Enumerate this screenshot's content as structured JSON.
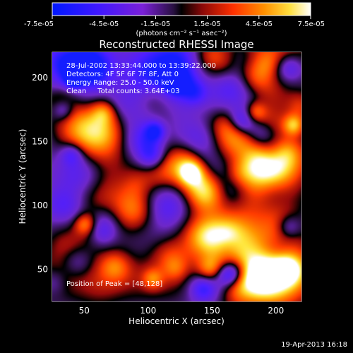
{
  "chart_data": {
    "type": "heatmap",
    "title": "Reconstructed RHESSI Image",
    "xlabel": "Heliocentric X (arcsec)",
    "ylabel": "Heliocentric Y (arcsec)",
    "xlim": [
      25,
      220
    ],
    "ylim": [
      25,
      220
    ],
    "x_ticks": [
      50,
      100,
      150,
      200
    ],
    "y_ticks": [
      50,
      100,
      150,
      200
    ],
    "colorbar": {
      "min": -7.5e-05,
      "max": 7.5e-05,
      "tick_labels": [
        "-7.5e-05",
        "-4.5e-05",
        "-1.5e-05",
        "1.5e-05",
        "4.5e-05",
        "7.5e-05"
      ],
      "units": "(photons cm⁻² s⁻¹ asec⁻²)",
      "colors": [
        "#2020ff",
        "#7020ff",
        "#202020",
        "#b01010",
        "#ff6000",
        "#ffff80",
        "#ffffff"
      ]
    },
    "annotations": [
      "28-Jul-2002 13:33:44.000 to 13:39:22.000",
      "Detectors: 4F 5F 6F 7F 8F, Att 0",
      "Energy Range: 25.0 - 50.0 keV",
      "Clean     Total counts: 3.64E+03",
      "Position of Peak = [48,128]"
    ],
    "peak_position": [
      48,
      128
    ],
    "grid": false
  },
  "footer": "19-Apr-2013 16:18"
}
